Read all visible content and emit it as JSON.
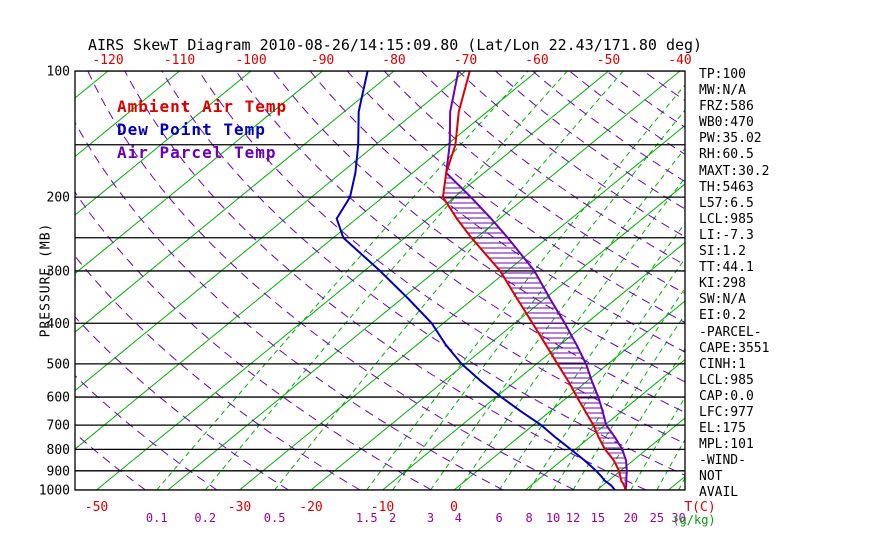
{
  "title": "AIRS SkewT Diagram 2010-08-26/14:15:09.80 (Lat/Lon 22.43/171.80 deg)",
  "colors": {
    "frame": "#000000",
    "isotherm": "#00b000",
    "mixing": "#00b000",
    "adiabat": "#6a00b8",
    "temp": "#dd0000",
    "dewpoint": "#0000bb",
    "parcel": "#6a00b8",
    "hatch": "#6a00b8",
    "mixing_label": "#a000a0",
    "mixing_unit": "#00a000",
    "axis_text": "#000000"
  },
  "legend": [
    {
      "label": "Ambient Air Temp",
      "color": "#dd0000"
    },
    {
      "label": "Dew Point Temp",
      "color": "#0000bb"
    },
    {
      "label": "Air Parcel Temp",
      "color": "#6a00b8"
    }
  ],
  "axes": {
    "pressure_label": "PRESSURE (MB)",
    "pressure_ticks": [
      100,
      200,
      300,
      400,
      500,
      600,
      700,
      800,
      900,
      1000
    ],
    "top_temp_ticks": [
      -120,
      -110,
      -100,
      -90,
      -80,
      -70,
      -60,
      -50,
      -40
    ],
    "bottom_temp_ticks": [
      -50,
      -30,
      -20,
      -10,
      0
    ],
    "temp_unit_label": "T(C)",
    "mixing_unit_label": "(g/kg)"
  },
  "chart_data": {
    "type": "line",
    "title": "AIRS SkewT Diagram 2010-08-26/14:15:09.80 (Lat/Lon 22.43/171.80 deg)",
    "xlabel": "T(C)",
    "ylabel": "PRESSURE (MB)",
    "y_scale": "log",
    "ylim": [
      1000,
      100
    ],
    "skew_deg45_isotherms": true,
    "isotherms_C": {
      "min": -130,
      "max": 40,
      "step": 10
    },
    "dry_adiabats_K": {
      "min": 210,
      "max": 450,
      "step": 10
    },
    "mixing_ratio_lines_g_kg": [
      0.1,
      0.2,
      0.5,
      1.5,
      2,
      3,
      4,
      6,
      8,
      10,
      12,
      15,
      20,
      25,
      30
    ],
    "pressure_lines_mb": [
      100,
      150,
      200,
      250,
      300,
      400,
      500,
      600,
      700,
      800,
      900,
      1000
    ],
    "hatched_region": "CAPE area between Ambient Air Temp and Air Parcel Temp, ~975mb up to 175mb",
    "series": [
      {
        "name": "Ambient Air Temp",
        "color": "#dd0000",
        "points_p_T": [
          [
            1000,
            24.0
          ],
          [
            975,
            23.0
          ],
          [
            950,
            21.8
          ],
          [
            925,
            20.8
          ],
          [
            900,
            19.8
          ],
          [
            850,
            17.3
          ],
          [
            800,
            14.2
          ],
          [
            750,
            11.3
          ],
          [
            700,
            8.4
          ],
          [
            650,
            5.0
          ],
          [
            600,
            1.3
          ],
          [
            550,
            -2.6
          ],
          [
            500,
            -7.1
          ],
          [
            450,
            -12.0
          ],
          [
            400,
            -17.5
          ],
          [
            350,
            -23.8
          ],
          [
            300,
            -31.0
          ],
          [
            250,
            -40.7
          ],
          [
            225,
            -46.0
          ],
          [
            200,
            -51.6
          ],
          [
            175,
            -55.3
          ],
          [
            150,
            -58.8
          ],
          [
            125,
            -64.0
          ],
          [
            100,
            -69.4
          ]
        ]
      },
      {
        "name": "Dew Point Temp",
        "color": "#0000bb",
        "points_p_T": [
          [
            1000,
            22.5
          ],
          [
            975,
            21.2
          ],
          [
            950,
            19.5
          ],
          [
            925,
            18.1
          ],
          [
            900,
            16.6
          ],
          [
            850,
            13.2
          ],
          [
            800,
            9.4
          ],
          [
            750,
            5.3
          ],
          [
            700,
            1.1
          ],
          [
            650,
            -4.0
          ],
          [
            600,
            -9.3
          ],
          [
            550,
            -14.8
          ],
          [
            500,
            -20.5
          ],
          [
            450,
            -26.0
          ],
          [
            400,
            -31.6
          ],
          [
            350,
            -39.0
          ],
          [
            300,
            -47.8
          ],
          [
            250,
            -58.6
          ],
          [
            225,
            -62.8
          ],
          [
            200,
            -64.6
          ],
          [
            175,
            -68.0
          ],
          [
            150,
            -72.4
          ],
          [
            125,
            -78.0
          ],
          [
            100,
            -83.7
          ]
        ]
      },
      {
        "name": "Air Parcel Temp",
        "color": "#6a00b8",
        "points_p_T": [
          [
            1000,
            24.0
          ],
          [
            975,
            23.3
          ],
          [
            950,
            22.5
          ],
          [
            925,
            21.7
          ],
          [
            900,
            20.9
          ],
          [
            850,
            19.0
          ],
          [
            800,
            16.6
          ],
          [
            750,
            13.6
          ],
          [
            700,
            10.2
          ],
          [
            650,
            7.4
          ],
          [
            600,
            4.3
          ],
          [
            550,
            0.7
          ],
          [
            500,
            -3.1
          ],
          [
            450,
            -7.7
          ],
          [
            400,
            -13.0
          ],
          [
            350,
            -19.2
          ],
          [
            300,
            -26.2
          ],
          [
            250,
            -35.6
          ],
          [
            225,
            -41.2
          ],
          [
            200,
            -47.7
          ],
          [
            175,
            -55.3
          ],
          [
            150,
            -59.6
          ],
          [
            125,
            -65.2
          ],
          [
            100,
            -71.0
          ]
        ]
      }
    ]
  },
  "stats": {
    "lines": [
      "TP:100",
      "MW:N/A",
      "FRZ:586",
      "WB0:470",
      "PW:35.02",
      "RH:60.5",
      "MAXT:30.2",
      "TH:5463",
      "L57:6.5",
      "LCL:985",
      "LI:-7.3",
      "SI:1.2",
      "TT:44.1",
      "KI:298",
      "SW:N/A",
      "EI:0.2",
      "-PARCEL-",
      "CAPE:3551",
      "CINH:1",
      "LCL:985",
      "CAP:0.0",
      "LFC:977",
      "EL:175",
      "MPL:101",
      "-WIND-",
      "NOT",
      "AVAIL"
    ]
  }
}
